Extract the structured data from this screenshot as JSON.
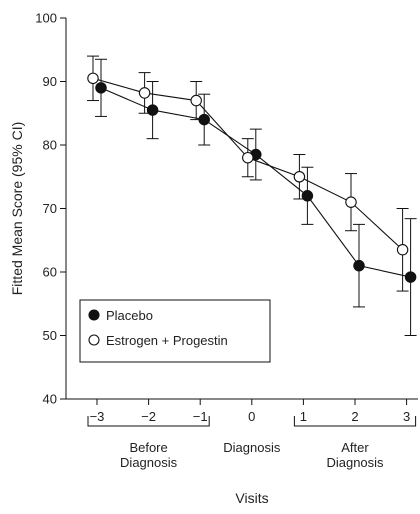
{
  "chart_data": {
    "type": "line",
    "xlabel": "Visits",
    "ylabel": "Fitted Mean Score (95% CI)",
    "ylim": [
      40,
      100
    ],
    "yticks": [
      40,
      50,
      60,
      70,
      80,
      90,
      100
    ],
    "xticks": [
      "−3",
      "−2",
      "−1",
      "0",
      "1",
      "2",
      "3"
    ],
    "xtick_values": [
      -3,
      -2,
      -1,
      0,
      1,
      2,
      3
    ],
    "groups": [
      {
        "label": [
          "Before",
          "Diagnosis"
        ],
        "from": -3,
        "to": -1,
        "bracket": true
      },
      {
        "label": [
          "Diagnosis"
        ],
        "from": 0,
        "to": 0,
        "bracket": false
      },
      {
        "label": [
          "After",
          "Diagnosis"
        ],
        "from": 1,
        "to": 3,
        "bracket": true
      }
    ],
    "legend_position": "bottom-left",
    "series": [
      {
        "name": "Placebo",
        "marker": "filled-circle",
        "color": "#111111",
        "points": [
          {
            "x": -3,
            "y": 89,
            "lo": 84.5,
            "hi": 93.5
          },
          {
            "x": -2,
            "y": 85.5,
            "lo": 81,
            "hi": 90
          },
          {
            "x": -1,
            "y": 84,
            "lo": 80,
            "hi": 88
          },
          {
            "x": 0,
            "y": 78.5,
            "lo": 74.5,
            "hi": 82.5
          },
          {
            "x": 1,
            "y": 72,
            "lo": 67.5,
            "hi": 76.5
          },
          {
            "x": 2,
            "y": 61,
            "lo": 54.5,
            "hi": 67.5
          },
          {
            "x": 3,
            "y": 59.2,
            "lo": 50,
            "hi": 68.4
          }
        ]
      },
      {
        "name": "Estrogen + Progestin",
        "marker": "open-circle",
        "color": "#111111",
        "points": [
          {
            "x": -3,
            "y": 90.5,
            "lo": 87,
            "hi": 94
          },
          {
            "x": -2,
            "y": 88.2,
            "lo": 85,
            "hi": 91.4
          },
          {
            "x": -1,
            "y": 87,
            "lo": 84,
            "hi": 90
          },
          {
            "x": 0,
            "y": 78,
            "lo": 75,
            "hi": 81
          },
          {
            "x": 1,
            "y": 75,
            "lo": 71.5,
            "hi": 78.5
          },
          {
            "x": 2,
            "y": 71,
            "lo": 66.5,
            "hi": 75.5
          },
          {
            "x": 3,
            "y": 63.5,
            "lo": 57,
            "hi": 70
          }
        ]
      }
    ]
  }
}
